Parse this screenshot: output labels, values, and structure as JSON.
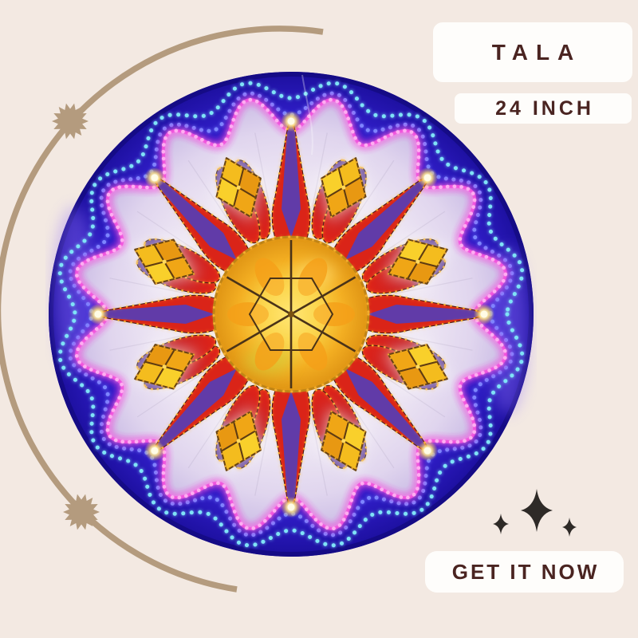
{
  "background_color": "#f3e9e2",
  "badges": {
    "brand_label": "TALA",
    "size_label": "24 INCH",
    "cta_label": "GET IT NOW"
  },
  "badge_style": {
    "background": "#fefdfb",
    "text_color": "#4a2421"
  },
  "decor": {
    "arc_color": "#b49b7e",
    "sunburst_color": "#b49b7e",
    "sparkle_color": "#2e2a27"
  },
  "lantern": {
    "alt": "Round parol capiz lantern lit with multicolor LED lights",
    "colors": {
      "ring_base": "#3a27d8",
      "ring_inner": "#4d3ae6",
      "ring_edge": "#1c0f9e",
      "ring_rim": "#150b86",
      "ring_sheen": "#8f6ffc",
      "led_cyan": "#7fe3f7",
      "led_blue": "#7d86ff",
      "led_magenta": "#f13ed9",
      "led_magenta_soft": "#ffaef2",
      "disc_light": "#f8f5fa",
      "disc_mid": "#efe8f4",
      "disc_edge": "#cdbfe6",
      "petal_red": "#da2418",
      "petal_purple": "#5b3db0",
      "string_gold": "#ffb832",
      "string_bright": "#ffd95e",
      "capiz_center": "#ffec7e",
      "capiz_mid": "#f3ae22",
      "capiz_edge": "#df9414",
      "flower_light": "#f9d02b",
      "flower_mid": "#f4bc1e",
      "flower_deep": "#f0a616",
      "flower_deep2": "#e89812",
      "outline_brown": "#5f3c12",
      "star_line": "#4a3318"
    }
  }
}
